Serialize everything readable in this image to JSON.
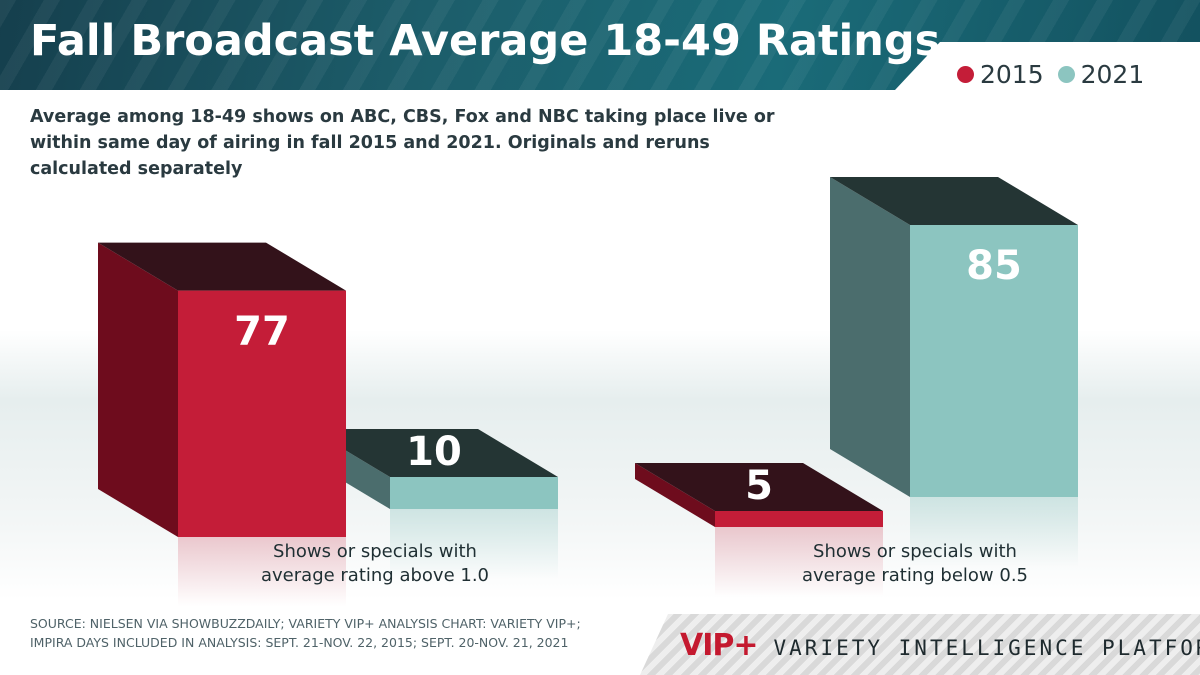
{
  "header": {
    "title": "Fall Broadcast Average 18-49 Ratings",
    "subtitle": "Average among 18-49 shows on ABC, CBS, Fox and NBC taking place live or within same day of airing in fall 2015 and 2021. Originals and reruns calculated separately"
  },
  "legend": [
    {
      "label": "2015",
      "color": "#c41d38"
    },
    {
      "label": "2021",
      "color": "#8cc5c0"
    }
  ],
  "chart_data": {
    "type": "bar",
    "title": "Fall Broadcast Average 18-49 Ratings",
    "categories": [
      "Shows or specials with average rating above 1.0",
      "Shows or specials with average rating below 0.5"
    ],
    "series": [
      {
        "name": "2015",
        "values": [
          77,
          5
        ],
        "color": "#c41d38"
      },
      {
        "name": "2021",
        "values": [
          10,
          85
        ],
        "color": "#8cc5c0"
      }
    ],
    "ylim": [
      0,
      100
    ],
    "legend": "top-right"
  },
  "categories": {
    "above": [
      "Shows or specials with",
      "average rating above 1.0"
    ],
    "below": [
      "Shows or specials with",
      "average rating below 0.5"
    ]
  },
  "footer": {
    "source_lines": [
      "SOURCE: NIELSEN VIA SHOWBUZZDAILY; VARIETY VIP+ ANALYSIS CHART: VARIETY VIP+;",
      "IMPIRA DAYS INCLUDED IN ANALYSIS: SEPT. 21-NOV. 22, 2015; SEPT. 20-NOV. 21, 2021"
    ],
    "brand_mark": "VIP+",
    "brand_name": "VARIETY INTELLIGENCE PLATFORM"
  }
}
